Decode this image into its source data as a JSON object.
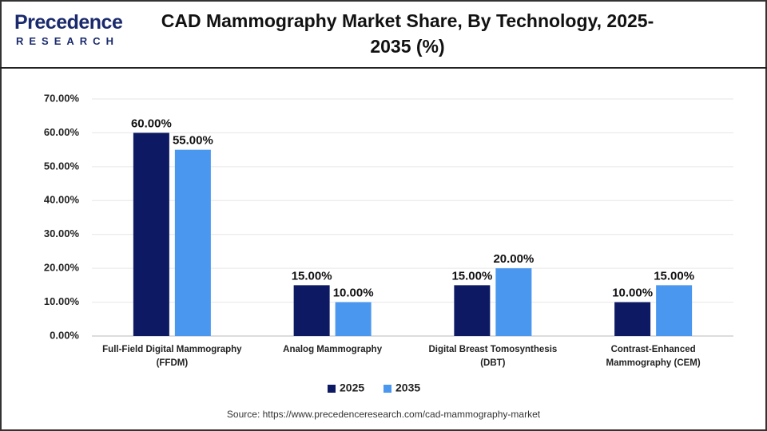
{
  "logo": {
    "name": "Precedence",
    "tagline": "RESEARCH"
  },
  "chart_data": {
    "type": "bar",
    "title": "CAD Mammography Market Share, By Technology, 2025-2035 (%)",
    "categories": [
      "Full-Field Digital Mammography (FFDM)",
      "Analog Mammography",
      "Digital Breast Tomosynthesis (DBT)",
      "Contrast-Enhanced Mammography (CEM)"
    ],
    "series": [
      {
        "name": "2025",
        "color": "#0d1a63",
        "values": [
          60,
          15,
          15,
          10
        ],
        "value_labels": [
          "60.00%",
          "15.00%",
          "15.00%",
          "10.00%"
        ]
      },
      {
        "name": "2035",
        "color": "#4a97f0",
        "values": [
          55,
          10,
          20,
          15
        ],
        "value_labels": [
          "55.00%",
          "10.00%",
          "20.00%",
          "15.00%"
        ]
      }
    ],
    "ylim": [
      0,
      70
    ],
    "yticks": [
      {
        "value": 0,
        "label": "0.00%"
      },
      {
        "value": 10,
        "label": "10.00%"
      },
      {
        "value": 20,
        "label": "20.00%"
      },
      {
        "value": 30,
        "label": "30.00%"
      },
      {
        "value": 40,
        "label": "40.00%"
      },
      {
        "value": 50,
        "label": "50.00%"
      },
      {
        "value": 60,
        "label": "60.00%"
      },
      {
        "value": 70,
        "label": "70.00%"
      }
    ],
    "grid": true,
    "legend": "bottom",
    "source": "Source: https://www.precedenceresearch.com/cad-mammography-market"
  }
}
